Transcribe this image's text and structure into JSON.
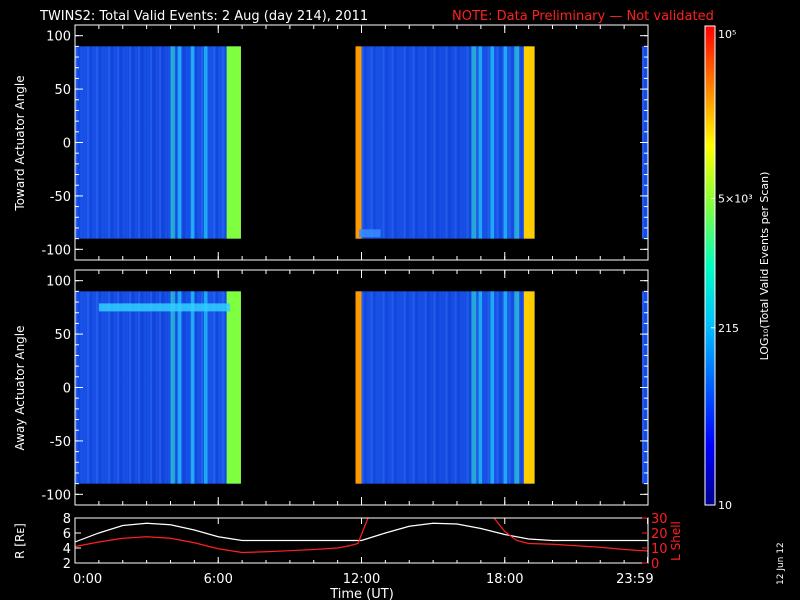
{
  "title": {
    "main": "TWINS2: Total Valid Events:  2 Aug (day 214), 2011",
    "note": "NOTE: Data Preliminary — Not validated",
    "note_color": "#ff2020"
  },
  "side_date": "12 Jun 12",
  "chart_data": [
    {
      "type": "heatmap",
      "name": "toward-panel",
      "ylabel": "Toward Actuator Angle",
      "yticks": [
        100,
        50,
        0,
        -50,
        -100
      ],
      "ylim": [
        -110,
        110
      ],
      "data_ylim": [
        -90,
        90
      ],
      "xlim": [
        0,
        24
      ],
      "data_segments_hours": [
        [
          0,
          6.95
        ],
        [
          11.75,
          19.25
        ],
        [
          23.75,
          24
        ]
      ],
      "bright_stripes_hours": [
        [
          11.75,
          12.0,
          "#ff9a00"
        ],
        [
          18.8,
          19.25,
          "#ffcc00"
        ],
        [
          6.35,
          6.95,
          "#80ff40"
        ]
      ],
      "notable_feature": {
        "angle": -85,
        "x_range_hours": [
          11.9,
          12.8
        ],
        "color": "#3a8cff"
      }
    },
    {
      "type": "heatmap",
      "name": "away-panel",
      "ylabel": "Away Actuator Angle",
      "yticks": [
        100,
        50,
        0,
        -50,
        -100
      ],
      "ylim": [
        -110,
        110
      ],
      "data_ylim": [
        -90,
        90
      ],
      "xlim": [
        0,
        24
      ],
      "data_segments_hours": [
        [
          0,
          6.95
        ],
        [
          11.75,
          19.25
        ],
        [
          23.75,
          24
        ]
      ],
      "bright_stripes_hours": [
        [
          11.75,
          12.0,
          "#ff9a00"
        ],
        [
          18.8,
          19.25,
          "#ffcc00"
        ],
        [
          6.35,
          6.95,
          "#80ff40"
        ]
      ],
      "notable_feature": {
        "angle": 75,
        "x_range_hours": [
          1.0,
          6.5
        ],
        "color": "#30d0ff"
      }
    },
    {
      "type": "line",
      "name": "orbit-panel",
      "ylabel_left": "R [Rᴇ]",
      "ylabel_right": "L Shell",
      "left_yticks": [
        8,
        6,
        4,
        2
      ],
      "right_yticks": [
        30,
        20,
        10,
        0
      ],
      "left_ylim": [
        2,
        8
      ],
      "right_ylim": [
        0,
        30
      ],
      "series": [
        {
          "color": "#ffffff",
          "x": [
            0,
            1,
            2,
            3,
            4,
            5,
            6,
            7,
            8,
            9,
            10,
            11,
            12,
            13,
            14,
            15,
            16,
            17,
            18,
            19,
            20,
            21,
            22,
            23,
            24
          ],
          "y": [
            4.8,
            6.0,
            7.0,
            7.3,
            7.1,
            6.4,
            5.5,
            5.0,
            5.0,
            5.0,
            5.0,
            5.0,
            5.0,
            6.0,
            6.9,
            7.3,
            7.2,
            6.6,
            5.8,
            5.2,
            5.0,
            5.0,
            5.0,
            5.0,
            5.0
          ]
        },
        {
          "color": "#ff2020",
          "axis": "right",
          "x": [
            0,
            1,
            2,
            3,
            4,
            5,
            6,
            7,
            8,
            9,
            10,
            11,
            11.5,
            11.85,
            12.3,
            17.5,
            18.0,
            18.5,
            19,
            20,
            21,
            22,
            23,
            24
          ],
          "y": [
            11,
            14,
            16.5,
            17.5,
            16.5,
            13.5,
            9.5,
            7.0,
            7.5,
            8.2,
            9.0,
            10.0,
            11.5,
            13,
            31,
            31,
            21,
            15,
            13,
            12.5,
            11.5,
            10.5,
            9.0,
            8.0
          ]
        }
      ],
      "xlabel": "Time (UT)",
      "xtick_labels": [
        "0:00",
        "6:00",
        "12:00",
        "18:00",
        "23:59"
      ],
      "xtick_hours": [
        0,
        6,
        12,
        18,
        23.983
      ]
    }
  ],
  "colorbar": {
    "label": "LOG₁₀(Total Valid Events per Scan)",
    "tick_labels": [
      "10⁵",
      "5×10³",
      "215",
      "10"
    ],
    "tick_fracs": [
      1.0,
      0.64,
      0.37,
      0.0
    ],
    "stops": [
      "#00008c",
      "#0000ff",
      "#0060ff",
      "#00c0ff",
      "#00ffc0",
      "#80ff40",
      "#ffff00",
      "#ff8000",
      "#ff0000"
    ]
  }
}
